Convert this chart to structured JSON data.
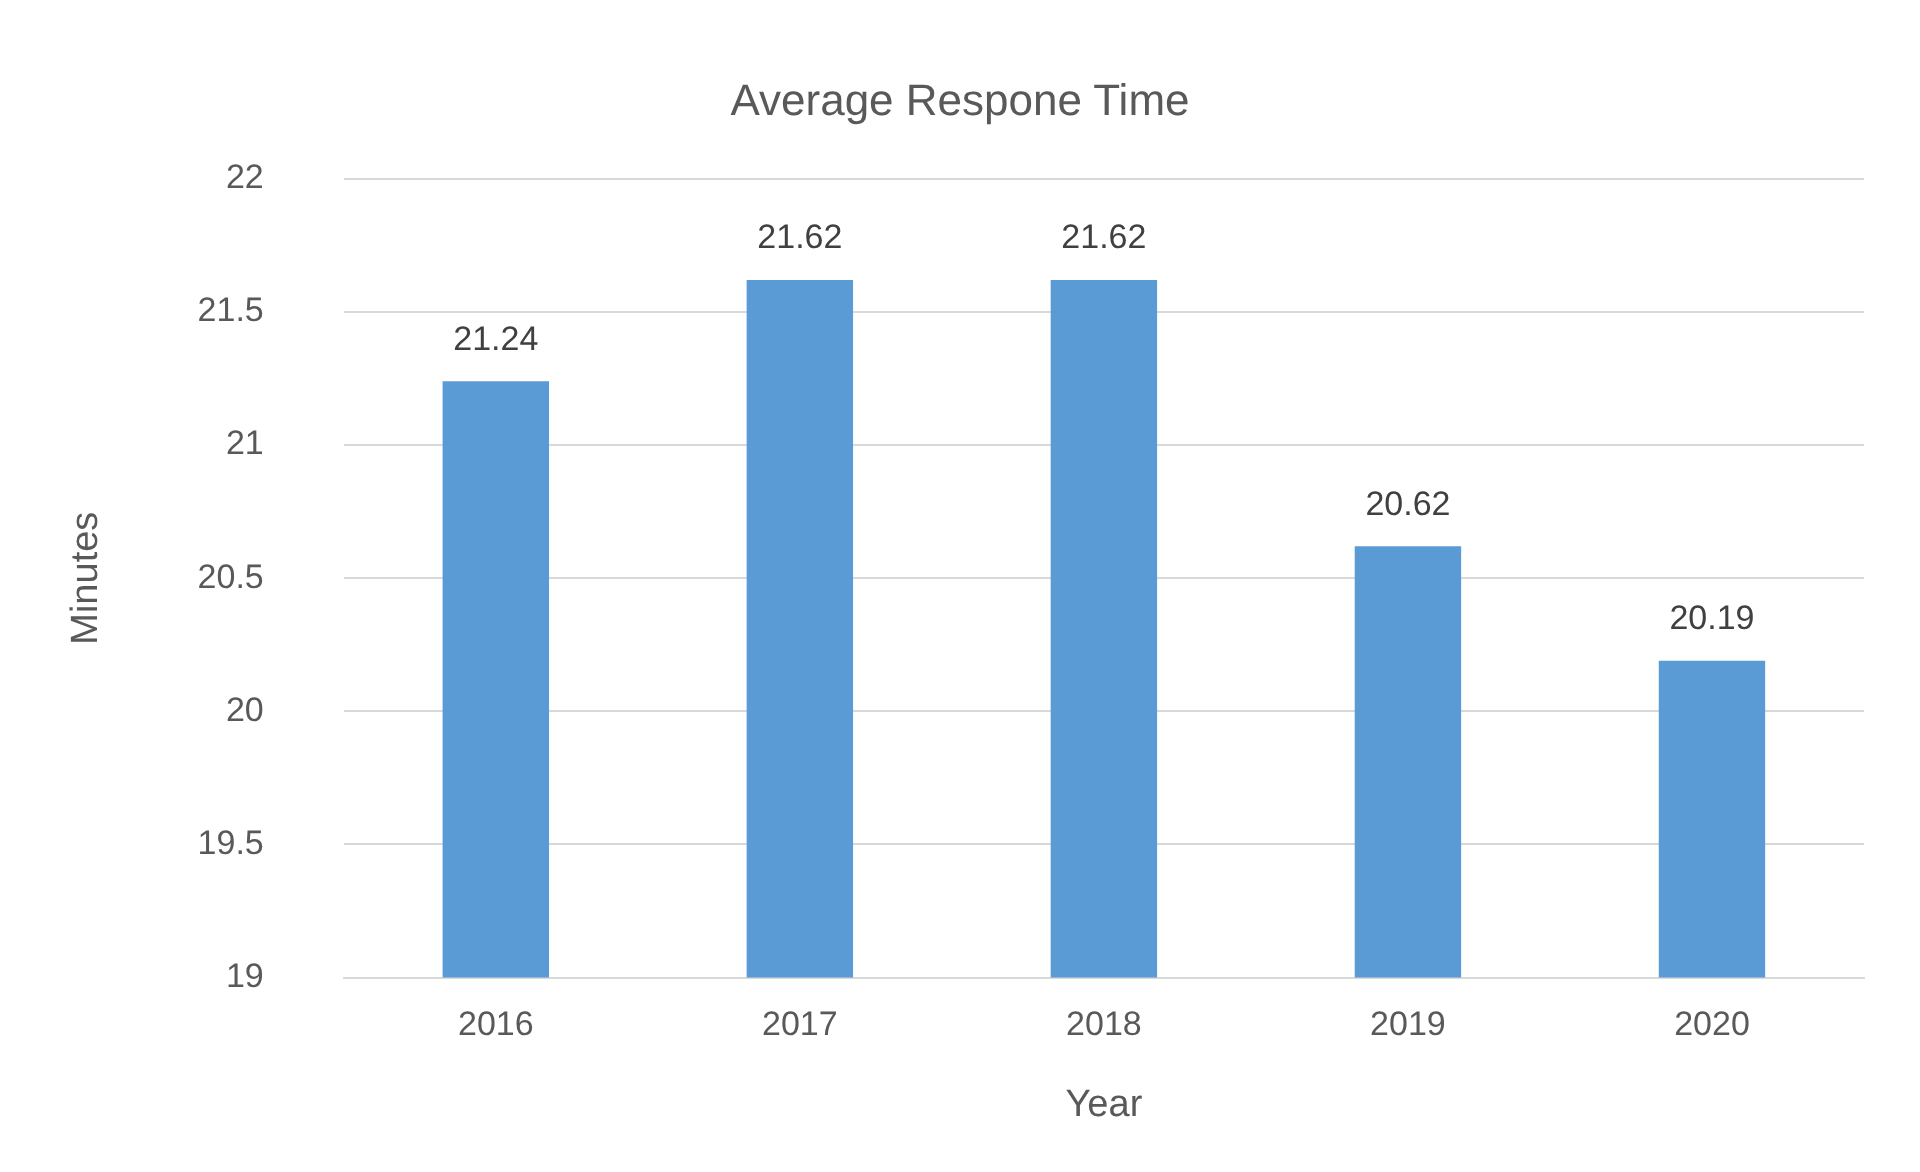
{
  "chart_data": {
    "type": "bar",
    "title": "Average Respone Time",
    "xlabel": "Year",
    "ylabel": "Minutes",
    "categories": [
      "2016",
      "2017",
      "2018",
      "2019",
      "2020"
    ],
    "values": [
      21.24,
      21.62,
      21.62,
      20.62,
      20.19
    ],
    "color": "#5b9bd5",
    "ylim": [
      19,
      22
    ],
    "yticks": [
      19,
      19.5,
      20,
      20.5,
      21,
      21.5,
      22
    ],
    "grid": "y",
    "legend": false,
    "data_labels": true
  }
}
